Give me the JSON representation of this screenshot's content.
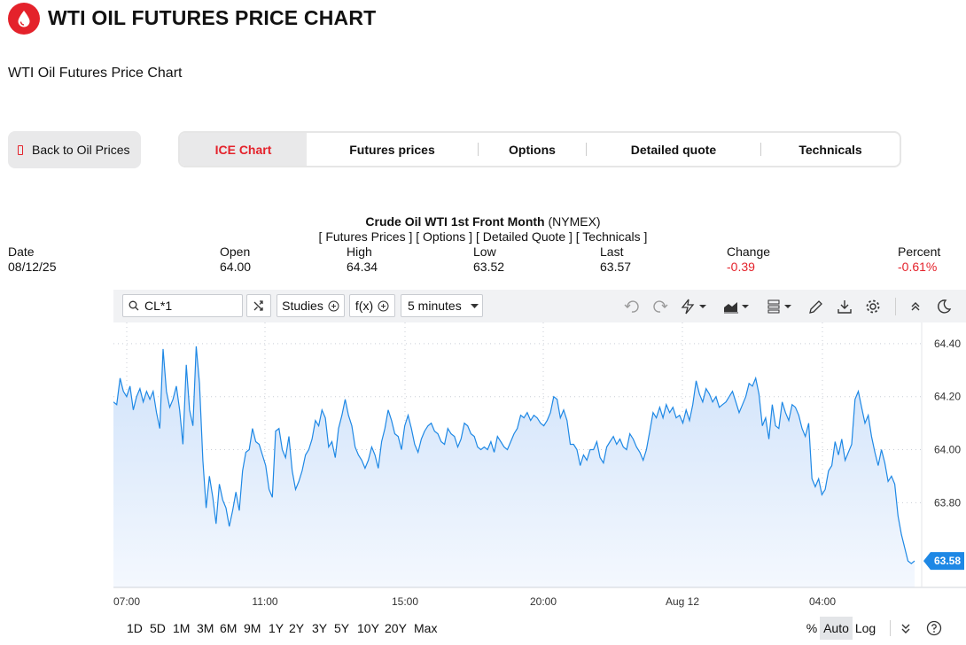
{
  "header": {
    "title": "WTI OIL FUTURES PRICE CHART",
    "subtitle": "WTI Oil Futures Price Chart"
  },
  "back_button": {
    "label": "Back to Oil Prices"
  },
  "tabs": [
    {
      "label": "ICE Chart",
      "active": true
    },
    {
      "label": "Futures prices",
      "active": false
    },
    {
      "label": "Options",
      "active": false
    },
    {
      "label": "Detailed quote",
      "active": false
    },
    {
      "label": "Technicals",
      "active": false
    }
  ],
  "instrument": {
    "name": "Crude Oil WTI 1st Front Month",
    "exchange": "(NYMEX)",
    "links": "[ Futures Prices ] [ Options ] [ Detailed Quote ] [ Technicals ]"
  },
  "quote": {
    "headers": [
      "Date",
      "Open",
      "High",
      "Low",
      "Last",
      "Change",
      "Percent"
    ],
    "values": [
      "08/12/25",
      "64.00",
      "64.34",
      "63.52",
      "63.57",
      "-0.39",
      "-0.61%"
    ]
  },
  "toolbar": {
    "symbol": "CL*1",
    "studies_label": "Studies",
    "fx_label": "f(x)",
    "interval": "5 minutes",
    "icons": [
      "undo-icon",
      "redo-icon",
      "lightning-icon",
      "area-chart-icon",
      "layout-icon",
      "pencil-icon",
      "download-icon",
      "settings-icon",
      "collapse-icon",
      "theme-icon"
    ]
  },
  "bottom_bar": {
    "ranges": [
      "1D",
      "5D",
      "1M",
      "3M",
      "6M",
      "9M",
      "1Y",
      "2Y",
      "3Y",
      "5Y",
      "10Y",
      "20Y",
      "Max"
    ],
    "scale_options": [
      "%",
      "Auto",
      "Log"
    ],
    "active_scale": "Auto"
  },
  "colors": {
    "accent": "#e4222b",
    "line": "#1e88e5",
    "fill": "#d8e8fb",
    "price_tag": "#1e88e5"
  },
  "chart_data": {
    "type": "area",
    "x_tick_labels": [
      "07:00",
      "11:00",
      "15:00",
      "20:00",
      "Aug 12",
      "04:00"
    ],
    "y_tick_labels": [
      "64.40",
      "64.20",
      "64.00",
      "63.80"
    ],
    "ylim": [
      63.48,
      64.48
    ],
    "last_price_label": "63.58",
    "x_unit": "5-minute bars since 07:00",
    "y": [
      64.18,
      64.17,
      64.27,
      64.22,
      64.2,
      64.24,
      64.15,
      64.2,
      64.23,
      64.18,
      64.22,
      64.19,
      64.22,
      64.14,
      64.08,
      64.38,
      64.22,
      64.16,
      64.19,
      64.24,
      64.15,
      64.02,
      64.32,
      64.15,
      64.09,
      64.39,
      64.25,
      63.96,
      63.78,
      63.9,
      63.82,
      63.72,
      63.87,
      63.81,
      63.78,
      63.71,
      63.77,
      63.84,
      63.77,
      63.92,
      63.99,
      64.0,
      64.08,
      64.03,
      64.02,
      63.98,
      63.94,
      63.85,
      63.82,
      64.07,
      64.08,
      64.0,
      63.97,
      64.05,
      63.92,
      63.85,
      63.88,
      63.92,
      63.98,
      64.0,
      64.04,
      64.11,
      64.09,
      64.15,
      64.12,
      64.01,
      64.03,
      63.97,
      64.08,
      64.13,
      64.19,
      64.13,
      64.09,
      64.01,
      63.98,
      63.96,
      63.93,
      63.96,
      64.01,
      63.98,
      63.93,
      64.03,
      64.08,
      64.15,
      64.11,
      64.06,
      64.05,
      64.0,
      64.09,
      64.13,
      64.08,
      64.02,
      63.99,
      64.04,
      64.07,
      64.09,
      64.1,
      64.07,
      64.06,
      64.03,
      64.02,
      64.08,
      64.06,
      64.05,
      64.01,
      64.04,
      64.1,
      64.09,
      64.06,
      64.05,
      64.01,
      64.0,
      64.01,
      64.0,
      64.03,
      63.99,
      64.05,
      64.03,
      64.01,
      64.0,
      64.03,
      64.06,
      64.08,
      64.13,
      64.12,
      64.14,
      64.11,
      64.13,
      64.12,
      64.1,
      64.09,
      64.11,
      64.14,
      64.2,
      64.19,
      64.12,
      64.15,
      64.11,
      64.02,
      64.02,
      64.0,
      63.94,
      63.98,
      63.96,
      64.0,
      64.0,
      64.03,
      63.97,
      63.95,
      64.01,
      64.03,
      64.05,
      64.02,
      64.04,
      64.01,
      64.0,
      64.06,
      64.04,
      64.01,
      63.99,
      63.96,
      64.0,
      64.07,
      64.14,
      64.12,
      64.16,
      64.12,
      64.17,
      64.14,
      64.16,
      64.12,
      64.13,
      64.1,
      64.15,
      64.11,
      64.17,
      64.26,
      64.21,
      64.18,
      64.23,
      64.21,
      64.18,
      64.2,
      64.16,
      64.17,
      64.18,
      64.2,
      64.22,
      64.18,
      64.14,
      64.17,
      64.2,
      64.25,
      64.24,
      64.27,
      64.21,
      64.09,
      64.12,
      64.04,
      64.17,
      64.09,
      64.08,
      64.18,
      64.14,
      64.11,
      64.17,
      64.16,
      64.13,
      64.08,
      64.05,
      64.1,
      63.89,
      63.86,
      63.89,
      63.83,
      63.85,
      63.92,
      63.94,
      64.03,
      63.98,
      64.04,
      63.96,
      63.99,
      64.02,
      64.19,
      64.22,
      64.16,
      64.1,
      64.13,
      64.05,
      63.99,
      63.94,
      64.0,
      63.95,
      63.88,
      63.9,
      63.87,
      63.75,
      63.68,
      63.63,
      63.58,
      63.57,
      63.58
    ]
  }
}
